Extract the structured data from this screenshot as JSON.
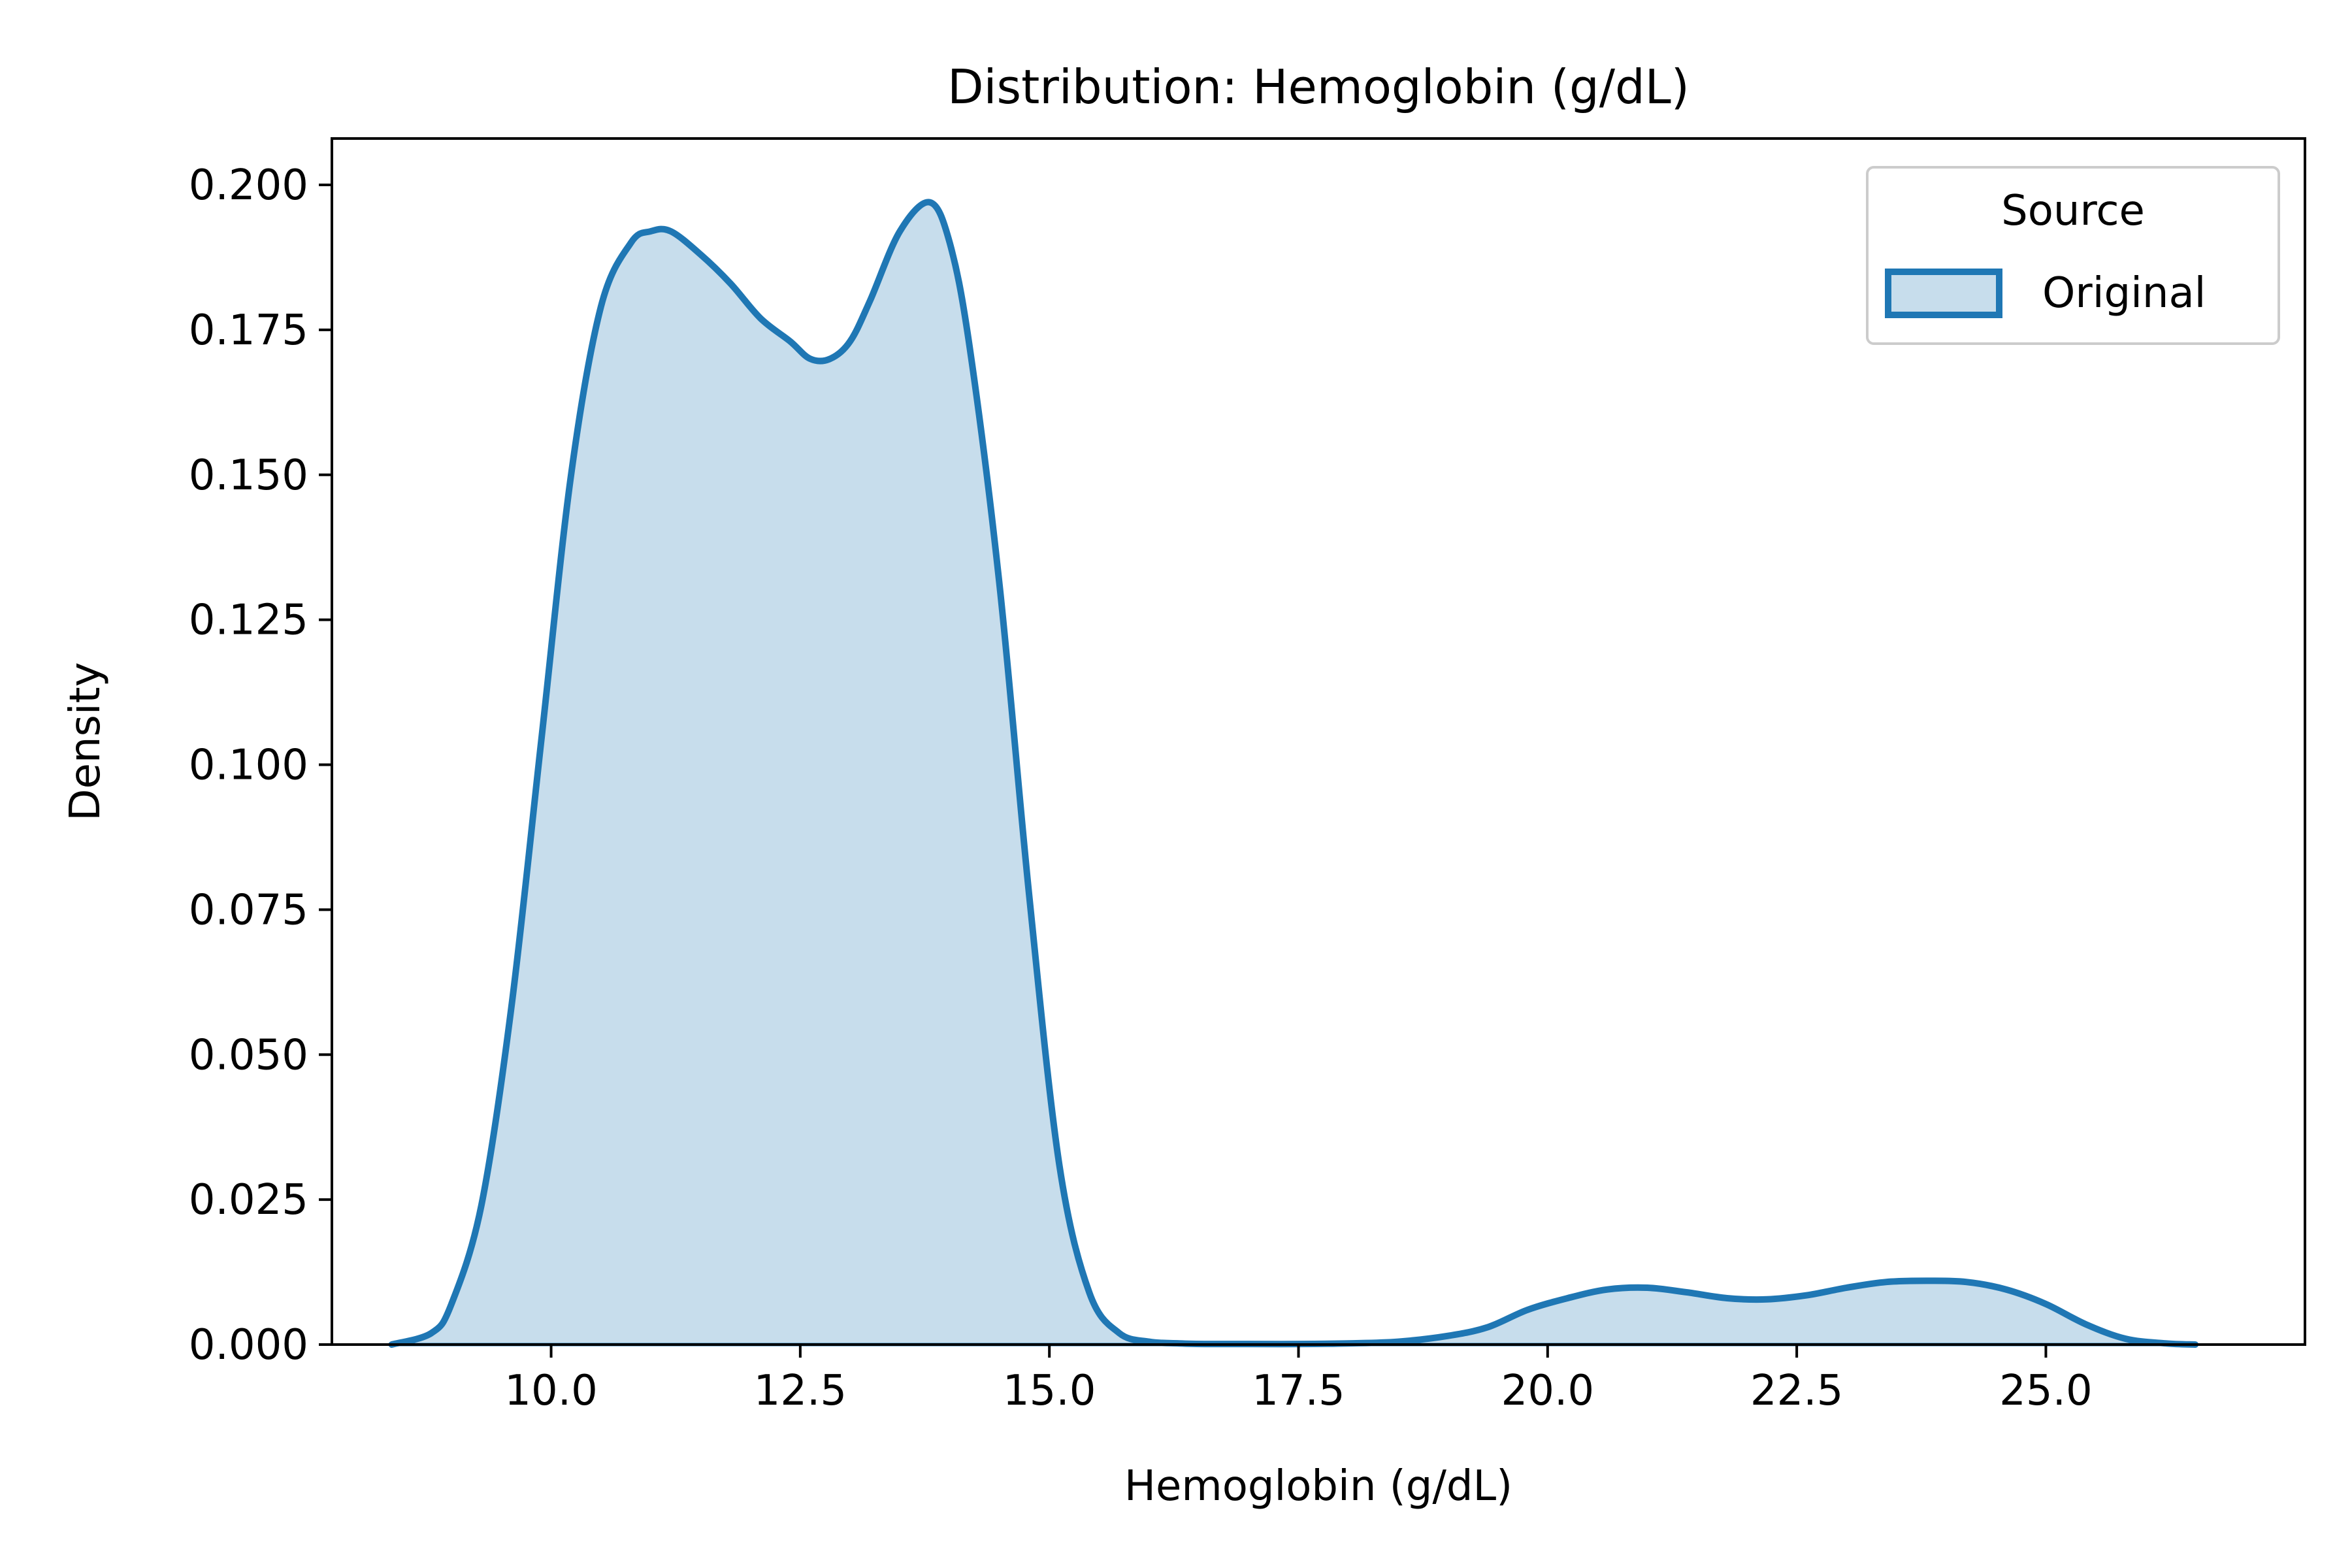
{
  "colors": {
    "line": "#1f77b4",
    "fill": "#1f77b4",
    "fill_opacity": 0.25,
    "axes": "#000000",
    "background": "#ffffff"
  },
  "chart_data": {
    "type": "area",
    "title": "Distribution: Hemoglobin (g/dL)",
    "xlabel": "Hemoglobin (g/dL)",
    "ylabel": "Density",
    "xlim": [
      7.8,
      27.6
    ],
    "ylim": [
      0.0,
      0.208
    ],
    "x_ticks": [
      10.0,
      12.5,
      15.0,
      17.5,
      20.0,
      22.5,
      25.0
    ],
    "x_tick_labels": [
      "10.0",
      "12.5",
      "15.0",
      "17.5",
      "20.0",
      "22.5",
      "25.0"
    ],
    "y_ticks": [
      0.0,
      0.025,
      0.05,
      0.075,
      0.1,
      0.125,
      0.15,
      0.175,
      0.2
    ],
    "y_tick_labels": [
      "0.000",
      "0.025",
      "0.050",
      "0.075",
      "0.100",
      "0.125",
      "0.150",
      "0.175",
      "0.200"
    ],
    "grid": false,
    "legend": {
      "title": "Source",
      "placement": "top-right",
      "entries": [
        "Original"
      ]
    },
    "series": [
      {
        "name": "Original",
        "x": [
          8.4,
          8.8,
          9.0,
          9.3,
          9.6,
          9.9,
          10.2,
          10.5,
          10.8,
          11.0,
          11.2,
          11.5,
          11.8,
          12.1,
          12.4,
          12.6,
          12.8,
          13.0,
          13.2,
          13.5,
          13.8,
          14.0,
          14.2,
          14.5,
          14.8,
          15.1,
          15.4,
          15.7,
          16.0,
          16.3,
          16.6,
          17.0,
          17.5,
          18.0,
          18.5,
          19.0,
          19.4,
          19.8,
          20.2,
          20.6,
          21.0,
          21.4,
          21.8,
          22.2,
          22.6,
          23.0,
          23.4,
          23.8,
          24.2,
          24.6,
          25.0,
          25.4,
          25.8,
          26.2,
          26.5
        ],
        "y": [
          0.0,
          0.002,
          0.007,
          0.024,
          0.058,
          0.104,
          0.15,
          0.179,
          0.19,
          0.192,
          0.192,
          0.188,
          0.183,
          0.177,
          0.173,
          0.17,
          0.17,
          0.173,
          0.18,
          0.192,
          0.197,
          0.19,
          0.172,
          0.131,
          0.077,
          0.031,
          0.009,
          0.002,
          0.0005,
          0.0002,
          0.0001,
          0.0001,
          0.0001,
          0.0002,
          0.0005,
          0.0015,
          0.003,
          0.006,
          0.008,
          0.0095,
          0.0098,
          0.009,
          0.008,
          0.0078,
          0.0085,
          0.0098,
          0.0108,
          0.011,
          0.0108,
          0.0095,
          0.007,
          0.0035,
          0.001,
          0.0002,
          0.0
        ]
      }
    ]
  }
}
